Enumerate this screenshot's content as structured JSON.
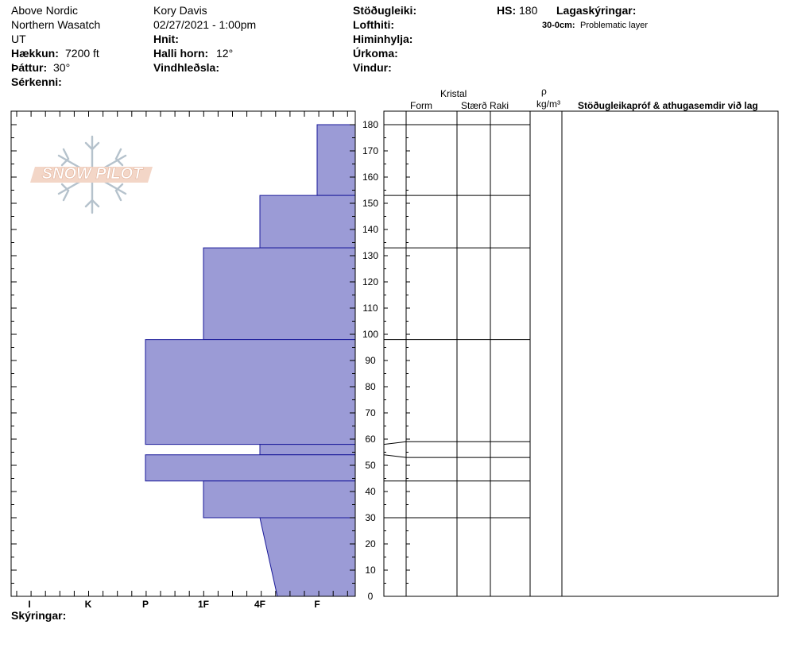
{
  "header": {
    "col1": {
      "line1": "Above Nordic",
      "line2": "Northern Wasatch",
      "line3": "UT",
      "elevation_label": "Hækkun:",
      "elevation_value": "7200 ft",
      "aspect_label": "Þáttur:",
      "aspect_value": "30°",
      "features_label": "Sérkenni:"
    },
    "col2": {
      "observer": "Kory Davis",
      "datetime": "02/27/2021 - 1:00pm",
      "coords_label": "Hnit:",
      "slope_label": "Halli horn:",
      "slope_value": "12°",
      "wind_loading_label": "Vindhleðsla:"
    },
    "col3": {
      "stability_label": "Stöðugleiki:",
      "air_temp_label": "Lofthiti:",
      "sky_label": "Himinhylja:",
      "precip_label": "Úrkoma:",
      "wind_label": "Vindur:"
    },
    "col4": {
      "hs_label": "HS:",
      "hs_value": "180",
      "layer_notes_label": "Lagaskýringar:",
      "layer_note_range": "30-0cm:",
      "layer_note_text": "Problematic layer"
    }
  },
  "logo_text": "SNOW PILOT",
  "columns": {
    "crystal": "Kristal",
    "form": "Form",
    "size": "Stærð",
    "moisture": "Raki",
    "rho": "ρ",
    "density_unit": "kg/m³",
    "tests": "Stöðugleikapróf & athugasemdir við lag"
  },
  "legend_label": "Skýringar:",
  "colors": {
    "hardness_fill": "#9b9bd6",
    "hardness_stroke": "#1a1a99"
  },
  "chart_data": {
    "type": "bar",
    "orientation": "horizontal",
    "title": "",
    "xlabel": "",
    "ylabel": "",
    "hardness_categories": [
      "F",
      "4F",
      "1F",
      "P",
      "K",
      "I"
    ],
    "x_tick_labels": [
      "I",
      "K",
      "P",
      "1F",
      "4F",
      "F"
    ],
    "y_range_cm": [
      0,
      180
    ],
    "y_ticks": [
      0,
      10,
      20,
      30,
      40,
      50,
      60,
      70,
      80,
      90,
      100,
      110,
      120,
      130,
      140,
      150,
      160,
      170,
      180
    ],
    "layers": [
      {
        "top": 180,
        "bottom": 153,
        "hardness": "F"
      },
      {
        "top": 153,
        "bottom": 133,
        "hardness": "4F"
      },
      {
        "top": 133,
        "bottom": 98,
        "hardness": "1F"
      },
      {
        "top": 98,
        "bottom": 58,
        "hardness": "P"
      },
      {
        "top": 58,
        "bottom": 54,
        "hardness": "4F"
      },
      {
        "top": 54,
        "bottom": 44,
        "hardness": "P"
      },
      {
        "top": 44,
        "bottom": 30,
        "hardness": "1F"
      },
      {
        "top": 30,
        "bottom": 0,
        "hardness": "4F",
        "hardness_bottom": "4F-"
      }
    ],
    "layer_boundaries_cm": [
      180,
      153,
      133,
      98,
      59,
      53,
      44,
      30
    ]
  }
}
